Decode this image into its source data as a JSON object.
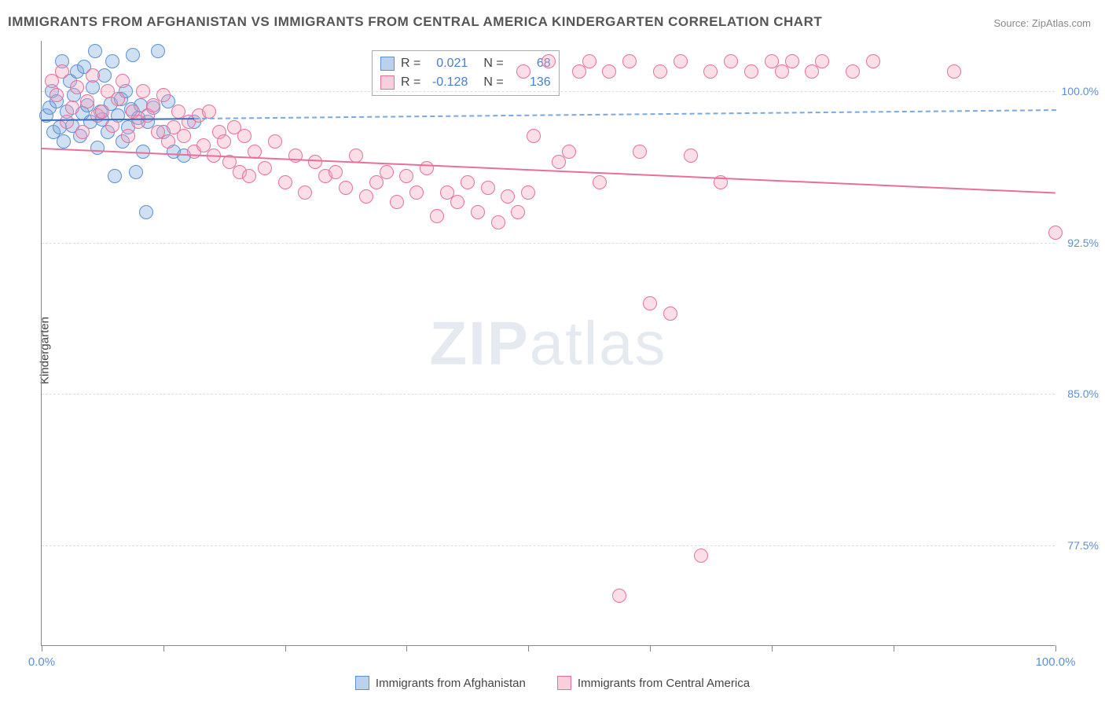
{
  "title": "IMMIGRANTS FROM AFGHANISTAN VS IMMIGRANTS FROM CENTRAL AMERICA KINDERGARTEN CORRELATION CHART",
  "source": "Source: ZipAtlas.com",
  "ylabel": "Kindergarten",
  "watermark": {
    "zip": "ZIP",
    "atlas": "atlas"
  },
  "chart": {
    "type": "scatter",
    "xlim": [
      0,
      100
    ],
    "ylim": [
      72.5,
      102.5
    ],
    "yticks": [
      77.5,
      85.0,
      92.5,
      100.0
    ],
    "ytick_labels": [
      "77.5%",
      "85.0%",
      "92.5%",
      "100.0%"
    ],
    "xtick_positions": [
      0,
      12,
      24,
      36,
      48,
      60,
      72,
      84,
      100
    ],
    "xtick_labels": {
      "0": "0.0%",
      "100": "100.0%"
    },
    "background_color": "#ffffff",
    "grid_color": "#dddddd",
    "marker_size": 18,
    "series": [
      {
        "name": "Immigrants from Afghanistan",
        "color_fill": "rgba(120,165,220,0.35)",
        "color_stroke": "#5b8fd6",
        "R": "0.021",
        "N": "68",
        "trend": {
          "x1": 0,
          "y1": 98.6,
          "x2": 100,
          "y2": 99.1,
          "solid_until_x": 15
        },
        "points": [
          [
            0.5,
            98.8
          ],
          [
            0.8,
            99.2
          ],
          [
            1.0,
            100.0
          ],
          [
            1.2,
            98.0
          ],
          [
            1.5,
            99.5
          ],
          [
            1.8,
            98.2
          ],
          [
            2.0,
            101.5
          ],
          [
            2.2,
            97.5
          ],
          [
            2.5,
            99.0
          ],
          [
            2.8,
            100.5
          ],
          [
            3.0,
            98.3
          ],
          [
            3.2,
            99.8
          ],
          [
            3.5,
            101.0
          ],
          [
            3.8,
            97.8
          ],
          [
            4.0,
            98.9
          ],
          [
            4.2,
            101.2
          ],
          [
            4.5,
            99.3
          ],
          [
            4.8,
            98.5
          ],
          [
            5.0,
            100.2
          ],
          [
            5.3,
            102.0
          ],
          [
            5.5,
            97.2
          ],
          [
            5.8,
            99.0
          ],
          [
            6.0,
            98.6
          ],
          [
            6.2,
            100.8
          ],
          [
            6.5,
            98.0
          ],
          [
            6.8,
            99.4
          ],
          [
            7.0,
            101.5
          ],
          [
            7.2,
            95.8
          ],
          [
            7.5,
            98.8
          ],
          [
            7.8,
            99.6
          ],
          [
            8.0,
            97.5
          ],
          [
            8.3,
            100.0
          ],
          [
            8.5,
            98.2
          ],
          [
            8.8,
            99.1
          ],
          [
            9.0,
            101.8
          ],
          [
            9.3,
            96.0
          ],
          [
            9.5,
            98.7
          ],
          [
            9.8,
            99.3
          ],
          [
            10.0,
            97.0
          ],
          [
            10.3,
            94.0
          ],
          [
            10.5,
            98.5
          ],
          [
            11.0,
            99.2
          ],
          [
            11.5,
            102.0
          ],
          [
            12.0,
            98.0
          ],
          [
            12.5,
            99.5
          ],
          [
            13.0,
            97.0
          ],
          [
            14.0,
            96.8
          ],
          [
            15.0,
            98.5
          ]
        ]
      },
      {
        "name": "Immigrants from Central America",
        "color_fill": "rgba(245,160,185,0.35)",
        "color_stroke": "#e86f9b",
        "R": "-0.128",
        "N": "136",
        "trend": {
          "x1": 0,
          "y1": 97.2,
          "x2": 100,
          "y2": 95.0,
          "solid_until_x": 100
        },
        "points": [
          [
            1.0,
            100.5
          ],
          [
            1.5,
            99.8
          ],
          [
            2.0,
            101.0
          ],
          [
            2.5,
            98.5
          ],
          [
            3.0,
            99.2
          ],
          [
            3.5,
            100.2
          ],
          [
            4.0,
            98.0
          ],
          [
            4.5,
            99.5
          ],
          [
            5.0,
            100.8
          ],
          [
            5.5,
            98.8
          ],
          [
            6.0,
            99.0
          ],
          [
            6.5,
            100.0
          ],
          [
            7.0,
            98.3
          ],
          [
            7.5,
            99.6
          ],
          [
            8.0,
            100.5
          ],
          [
            8.5,
            97.8
          ],
          [
            9.0,
            99.0
          ],
          [
            9.5,
            98.5
          ],
          [
            10.0,
            100.0
          ],
          [
            10.5,
            98.8
          ],
          [
            11.0,
            99.3
          ],
          [
            11.5,
            98.0
          ],
          [
            12.0,
            99.8
          ],
          [
            12.5,
            97.5
          ],
          [
            13.0,
            98.2
          ],
          [
            13.5,
            99.0
          ],
          [
            14.0,
            97.8
          ],
          [
            14.5,
            98.5
          ],
          [
            15.0,
            97.0
          ],
          [
            15.5,
            98.8
          ],
          [
            16.0,
            97.3
          ],
          [
            16.5,
            99.0
          ],
          [
            17.0,
            96.8
          ],
          [
            17.5,
            98.0
          ],
          [
            18.0,
            97.5
          ],
          [
            18.5,
            96.5
          ],
          [
            19.0,
            98.2
          ],
          [
            19.5,
            96.0
          ],
          [
            20.0,
            97.8
          ],
          [
            20.5,
            95.8
          ],
          [
            21.0,
            97.0
          ],
          [
            22.0,
            96.2
          ],
          [
            23.0,
            97.5
          ],
          [
            24.0,
            95.5
          ],
          [
            25.0,
            96.8
          ],
          [
            26.0,
            95.0
          ],
          [
            27.0,
            96.5
          ],
          [
            28.0,
            95.8
          ],
          [
            29.0,
            96.0
          ],
          [
            30.0,
            95.2
          ],
          [
            31.0,
            96.8
          ],
          [
            32.0,
            94.8
          ],
          [
            33.0,
            95.5
          ],
          [
            34.0,
            96.0
          ],
          [
            35.0,
            94.5
          ],
          [
            36.0,
            95.8
          ],
          [
            37.0,
            95.0
          ],
          [
            38.0,
            96.2
          ],
          [
            39.0,
            93.8
          ],
          [
            40.0,
            95.0
          ],
          [
            41.0,
            94.5
          ],
          [
            42.0,
            95.5
          ],
          [
            43.0,
            94.0
          ],
          [
            44.0,
            95.2
          ],
          [
            45.0,
            93.5
          ],
          [
            46.0,
            94.8
          ],
          [
            47.0,
            94.0
          ],
          [
            48.0,
            95.0
          ],
          [
            47.5,
            101.0
          ],
          [
            48.5,
            97.8
          ],
          [
            50.0,
            101.5
          ],
          [
            51.0,
            96.5
          ],
          [
            52.0,
            97.0
          ],
          [
            53.0,
            101.0
          ],
          [
            54.0,
            101.5
          ],
          [
            55.0,
            95.5
          ],
          [
            56.0,
            101.0
          ],
          [
            57.0,
            75.0
          ],
          [
            58.0,
            101.5
          ],
          [
            59.0,
            97.0
          ],
          [
            60.0,
            89.5
          ],
          [
            61.0,
            101.0
          ],
          [
            62.0,
            89.0
          ],
          [
            63.0,
            101.5
          ],
          [
            64.0,
            96.8
          ],
          [
            65.0,
            77.0
          ],
          [
            66.0,
            101.0
          ],
          [
            67.0,
            95.5
          ],
          [
            68.0,
            101.5
          ],
          [
            70.0,
            101.0
          ],
          [
            72.0,
            101.5
          ],
          [
            73.0,
            101.0
          ],
          [
            74.0,
            101.5
          ],
          [
            76.0,
            101.0
          ],
          [
            77.0,
            101.5
          ],
          [
            80.0,
            101.0
          ],
          [
            82.0,
            101.5
          ],
          [
            90.0,
            101.0
          ],
          [
            100.0,
            93.0
          ]
        ]
      }
    ]
  },
  "stats_box": {
    "rows": [
      {
        "swatch": "blue",
        "R_label": "R =",
        "R": "0.021",
        "N_label": "N =",
        "N": "68"
      },
      {
        "swatch": "pink",
        "R_label": "R =",
        "R": "-0.128",
        "N_label": "N =",
        "N": "136"
      }
    ]
  },
  "legend": {
    "items": [
      {
        "swatch": "blue",
        "label": "Immigrants from Afghanistan"
      },
      {
        "swatch": "pink",
        "label": "Immigrants from Central America"
      }
    ]
  }
}
